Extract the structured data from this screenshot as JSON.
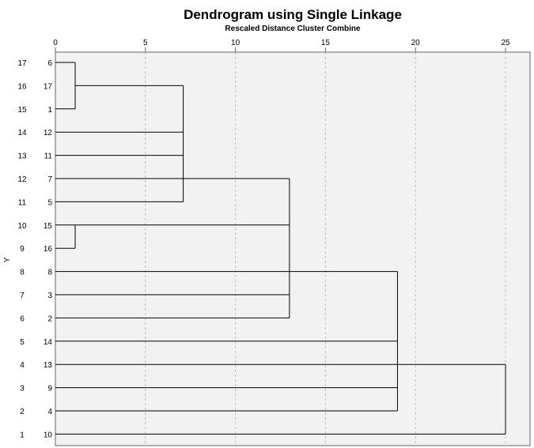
{
  "chart_data": {
    "type": "dendrogram",
    "title": "Dendrogram using Single Linkage",
    "subtitle": "Rescaled Distance Cluster Combine",
    "ylabel": "Y",
    "xlim": [
      0,
      26
    ],
    "x_ticks": [
      0,
      5,
      10,
      15,
      20,
      25
    ],
    "grid": "vertical dashed at x ticks",
    "background": "#f2f2f2",
    "rows": [
      {
        "y": 17,
        "case": "6"
      },
      {
        "y": 16,
        "case": "17"
      },
      {
        "y": 15,
        "case": "1"
      },
      {
        "y": 14,
        "case": "12"
      },
      {
        "y": 13,
        "case": "11"
      },
      {
        "y": 12,
        "case": "7"
      },
      {
        "y": 11,
        "case": "5"
      },
      {
        "y": 10,
        "case": "15"
      },
      {
        "y": 9,
        "case": "16"
      },
      {
        "y": 8,
        "case": "8"
      },
      {
        "y": 7,
        "case": "3"
      },
      {
        "y": 6,
        "case": "2"
      },
      {
        "y": 5,
        "case": "14"
      },
      {
        "y": 4,
        "case": "13"
      },
      {
        "y": 3,
        "case": "9"
      },
      {
        "y": 2,
        "case": "4"
      },
      {
        "y": 1,
        "case": "10"
      }
    ],
    "merges": [
      {
        "members": [
          0,
          2
        ],
        "trunk_row": 1,
        "distance": 1.1
      },
      {
        "members": [
          3,
          4,
          5,
          6,
          "m0"
        ],
        "trunk_row": 5,
        "distance": 7.1
      },
      {
        "members": [
          7,
          8
        ],
        "trunk_row": 7,
        "distance": 1.1
      },
      {
        "members": [
          9,
          10,
          11,
          "m1",
          "m2"
        ],
        "trunk_row": 9,
        "distance": 13.0
      },
      {
        "members": [
          12,
          13,
          14,
          15,
          "m3"
        ],
        "trunk_row": 13,
        "distance": 19.0
      },
      {
        "members": [
          16,
          "m4"
        ],
        "trunk_row": 16,
        "distance": 25.0
      }
    ]
  }
}
